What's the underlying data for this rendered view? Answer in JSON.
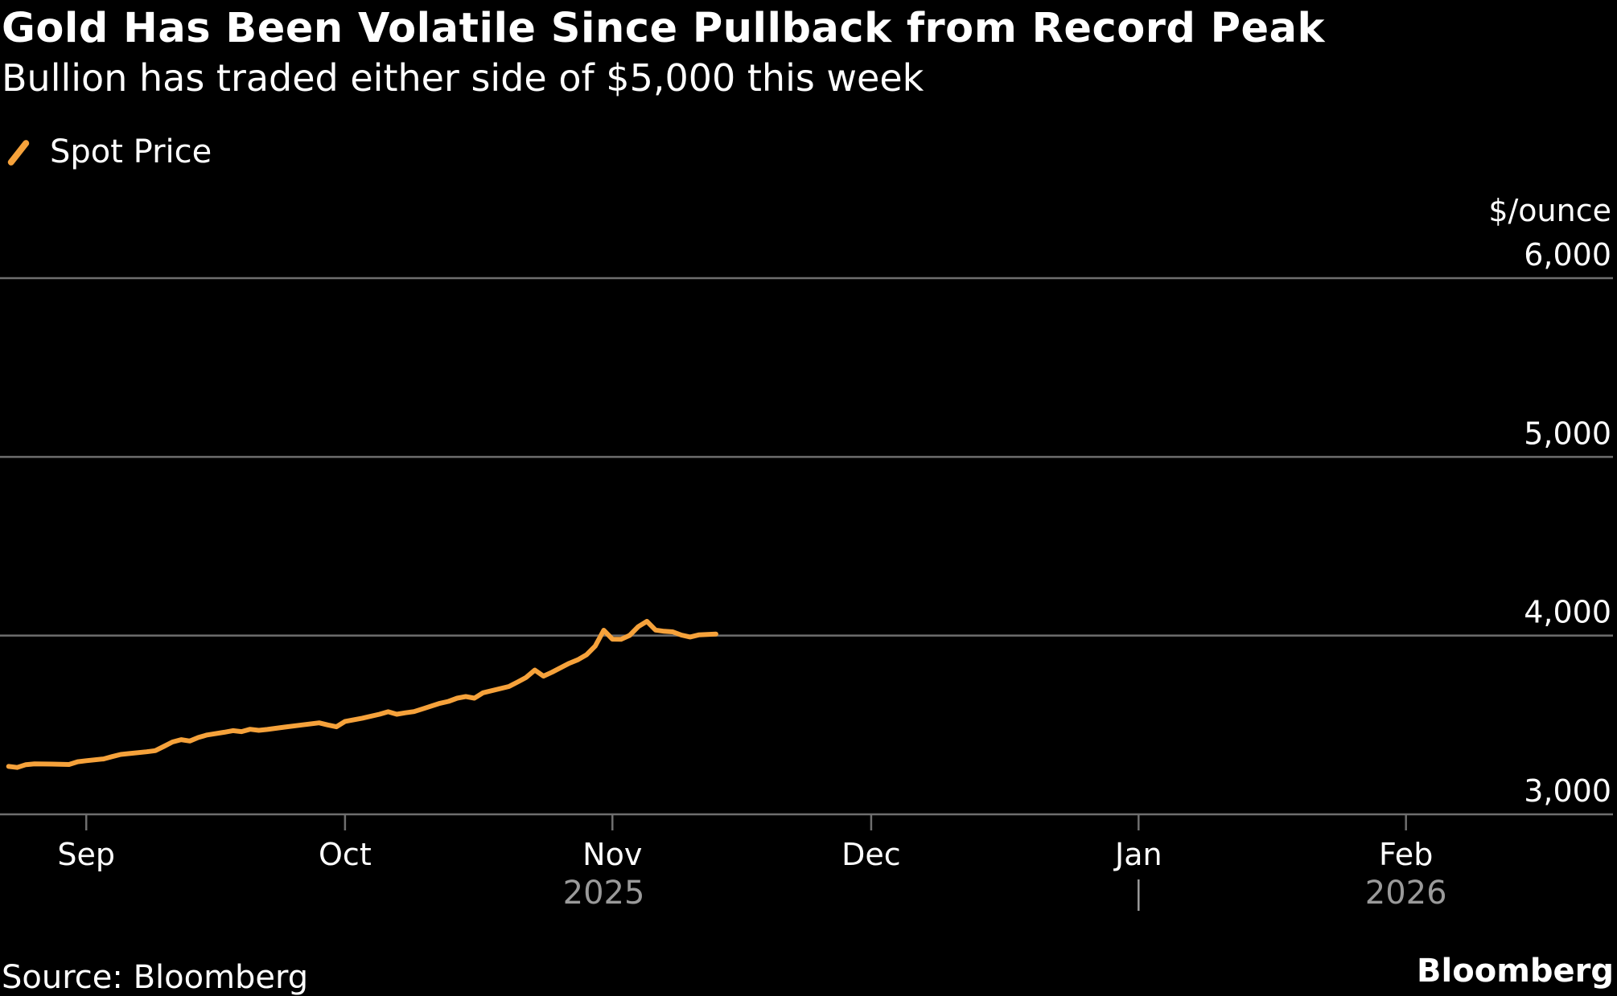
{
  "header": {
    "title": "Gold Has Been Volatile Since Pullback from Record Peak",
    "subtitle": "Bullion has traded either side of $5,000 this week"
  },
  "legend": {
    "label": "Spot Price",
    "color": "#f6a23b"
  },
  "footer": {
    "source": "Source: Bloomberg",
    "brand": "Bloomberg"
  },
  "colors": {
    "background": "#000000",
    "line": "#f6a23b",
    "grid": "#6e6e6e",
    "year_label": "#9a9a9a"
  },
  "chart_data": {
    "type": "line",
    "title": "Gold Has Been Volatile Since Pullback from Record Peak",
    "subtitle": "Bullion has traded either side of $5,000 this week",
    "ylabel": "$/ounce",
    "ylim": [
      3000,
      6000
    ],
    "yticks": [
      3000,
      4000,
      5000,
      6000
    ],
    "ytick_labels": [
      "3,000",
      "4,000",
      "5,000",
      "6,000"
    ],
    "xlim": [
      "2025-08-22",
      "2026-02-25"
    ],
    "xticks": [
      {
        "date": "2025-09-01",
        "label": "Sep"
      },
      {
        "date": "2025-10-01",
        "label": "Oct"
      },
      {
        "date": "2025-11-01",
        "label": "Nov"
      },
      {
        "date": "2025-12-01",
        "label": "Dec"
      },
      {
        "date": "2026-01-01",
        "label": "Jan"
      },
      {
        "date": "2026-02-01",
        "label": "Feb"
      }
    ],
    "year_labels": [
      {
        "date": "2025-10-31",
        "label": "2025"
      },
      {
        "date": "2026-02-01",
        "label": "2026"
      }
    ],
    "year_divider_date": "2026-01-01",
    "grid": true,
    "y_axis_side": "right",
    "legend_position": "top-left",
    "series": [
      {
        "name": "Spot Price",
        "color": "#f6a23b",
        "points": [
          [
            "2025-08-23",
            3268
          ],
          [
            "2025-08-24",
            3262
          ],
          [
            "2025-08-25",
            3278
          ],
          [
            "2025-08-26",
            3282
          ],
          [
            "2025-08-28",
            3281
          ],
          [
            "2025-08-30",
            3279
          ],
          [
            "2025-08-31",
            3294
          ],
          [
            "2025-09-01",
            3300
          ],
          [
            "2025-09-03",
            3310
          ],
          [
            "2025-09-04",
            3323
          ],
          [
            "2025-09-05",
            3335
          ],
          [
            "2025-09-06",
            3340
          ],
          [
            "2025-09-08",
            3350
          ],
          [
            "2025-09-09",
            3356
          ],
          [
            "2025-09-10",
            3380
          ],
          [
            "2025-09-11",
            3405
          ],
          [
            "2025-09-12",
            3418
          ],
          [
            "2025-09-13",
            3410
          ],
          [
            "2025-09-14",
            3430
          ],
          [
            "2025-09-15",
            3444
          ],
          [
            "2025-09-17",
            3459
          ],
          [
            "2025-09-18",
            3468
          ],
          [
            "2025-09-19",
            3463
          ],
          [
            "2025-09-20",
            3476
          ],
          [
            "2025-09-21",
            3470
          ],
          [
            "2025-09-22",
            3475
          ],
          [
            "2025-09-24",
            3488
          ],
          [
            "2025-09-26",
            3500
          ],
          [
            "2025-09-28",
            3512
          ],
          [
            "2025-09-29",
            3500
          ],
          [
            "2025-09-30",
            3490
          ],
          [
            "2025-10-01",
            3520
          ],
          [
            "2025-10-03",
            3538
          ],
          [
            "2025-10-05",
            3560
          ],
          [
            "2025-10-06",
            3574
          ],
          [
            "2025-10-07",
            3560
          ],
          [
            "2025-10-08",
            3568
          ],
          [
            "2025-10-09",
            3575
          ],
          [
            "2025-10-10",
            3590
          ],
          [
            "2025-10-12",
            3621
          ],
          [
            "2025-10-13",
            3632
          ],
          [
            "2025-10-14",
            3650
          ],
          [
            "2025-10-15",
            3659
          ],
          [
            "2025-10-16",
            3650
          ],
          [
            "2025-10-17",
            3680
          ],
          [
            "2025-10-20",
            3715
          ],
          [
            "2025-10-21",
            3740
          ],
          [
            "2025-10-22",
            3766
          ],
          [
            "2025-10-23",
            3807
          ],
          [
            "2025-10-24",
            3773
          ],
          [
            "2025-10-25",
            3795
          ],
          [
            "2025-10-27",
            3845
          ],
          [
            "2025-10-28",
            3865
          ],
          [
            "2025-10-29",
            3893
          ],
          [
            "2025-10-30",
            3941
          ],
          [
            "2025-10-31",
            4030
          ],
          [
            "2025-11-01",
            3980
          ],
          [
            "2025-11-04",
            4050
          ],
          [
            "2025-11-05",
            4080
          ],
          [
            "2025-10-21",
            3740
          ],
          [
            "2025-10-22",
            3766
          ],
          [
            "2025-10-23",
            3807
          ],
          [
            "2025-10-24",
            3773
          ],
          [
            "2025-10-25",
            3795
          ],
          [
            "2025-10-27",
            3845
          ],
          [
            "2025-10-28",
            3865
          ],
          [
            "2025-10-29",
            3893
          ],
          [
            "2025-10-30",
            3941
          ],
          [
            "2025-10-31",
            4030
          ],
          [
            "2025-11-01",
            3980
          ],
          [
            "2025-11-04",
            4050
          ],
          [
            "2025-11-05",
            4080
          ],
          [
            "2025-11-02",
            3979
          ],
          [
            "2025-11-03",
            4001
          ],
          [
            "2025-11-04",
            4013
          ],
          [
            "2025-11-05",
            4023
          ],
          [
            "2025-11-06",
            4031
          ],
          [
            "2025-11-07",
            4024
          ],
          [
            "2025-11-08",
            4021
          ],
          [
            "2025-11-09",
            4003
          ],
          [
            "2025-11-10",
            3992
          ],
          [
            "2025-11-11",
            4004
          ],
          [
            "2025-11-13",
            4009
          ]
        ]
      }
    ]
  }
}
